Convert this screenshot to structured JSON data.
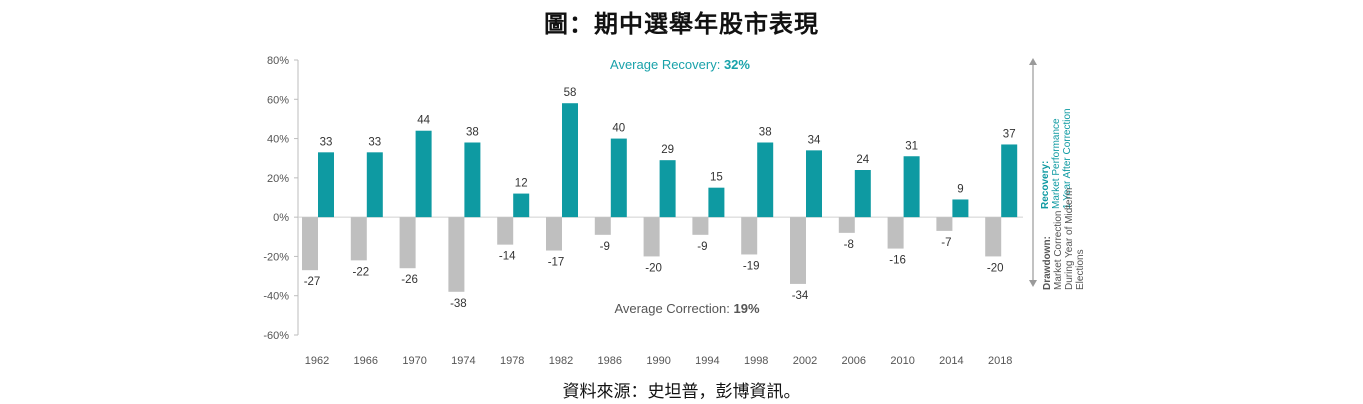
{
  "title": "圖：期中選舉年股市表現",
  "source": "資料來源：史坦普，彭博資訊。",
  "colors": {
    "recovery": "#0e9aa2",
    "correction": "#bfbfbf",
    "avg_recovery_text": "#19a2aa",
    "avg_correction_text": "#555555"
  },
  "chart_data": {
    "type": "bar",
    "categories": [
      "1962",
      "1966",
      "1970",
      "1974",
      "1978",
      "1982",
      "1986",
      "1990",
      "1994",
      "1998",
      "2002",
      "2006",
      "2010",
      "2014",
      "2018"
    ],
    "series": [
      {
        "values": [
          33,
          33,
          44,
          38,
          12,
          58,
          40,
          29,
          15,
          38,
          34,
          24,
          31,
          9,
          37
        ]
      },
      {
        "values": [
          -27,
          -22,
          -26,
          -38,
          -14,
          -17,
          -9,
          -20,
          -9,
          -19,
          -34,
          -8,
          -16,
          -7,
          -20
        ]
      }
    ],
    "ylim": [
      -60,
      80
    ],
    "yticks": [
      "-60%",
      "-40%",
      "-20%",
      "0%",
      "20%",
      "40%",
      "60%",
      "80%"
    ],
    "avg_recovery": {
      "label": "Average Recovery: ",
      "value": "32%"
    },
    "avg_correction": {
      "label": "Average Correction: ",
      "value": "19%"
    },
    "side_recovery": {
      "title": "Recovery:",
      "line1": "Market Performance",
      "line2": "1 Year After Correction"
    },
    "side_drawdown": {
      "title": "Drawdown:",
      "line1": "Market Correction",
      "line2": "During Year of Midterm",
      "line3": "Elections"
    },
    "grid": false
  }
}
